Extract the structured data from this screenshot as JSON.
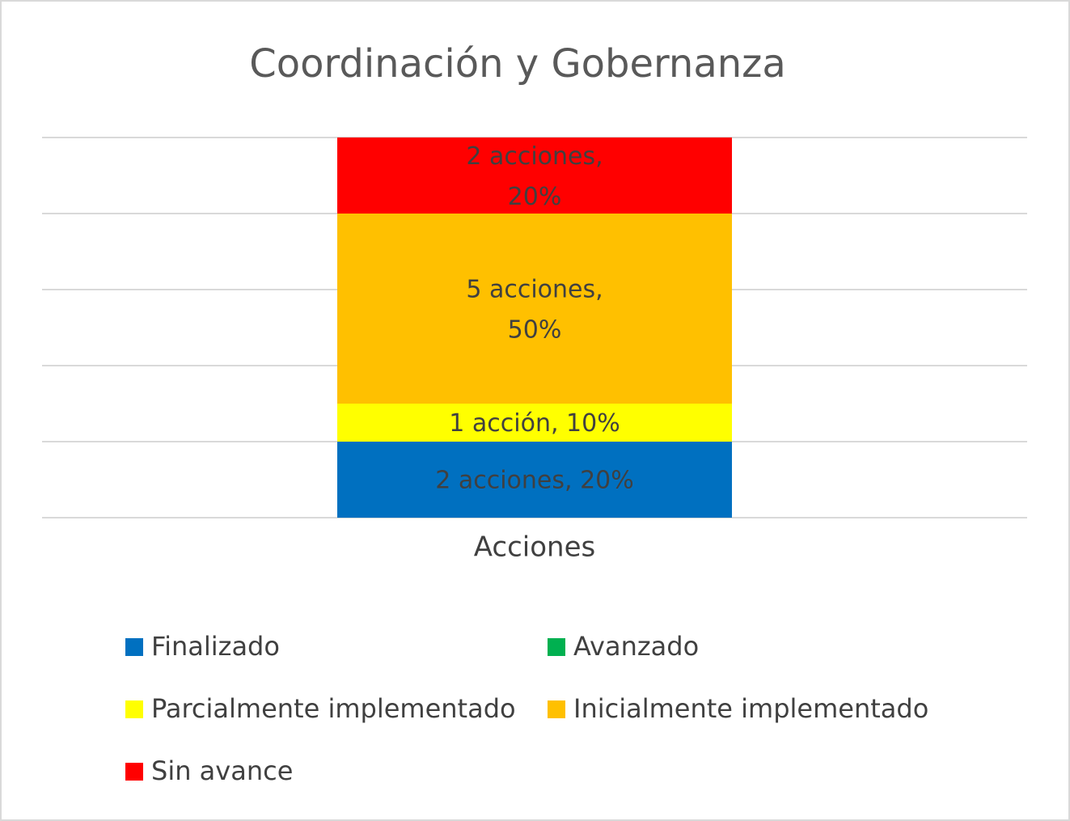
{
  "chart_data": {
    "type": "stacked_bar",
    "title": "Coordinación y Gobernanza",
    "categories": [
      "Acciones"
    ],
    "series": [
      {
        "name": "Finalizado",
        "color": "#0070c0",
        "values": [
          2
        ],
        "value_labels": [
          "2 acciones, 20%"
        ]
      },
      {
        "name": "Avanzado",
        "color": "#00b050",
        "values": [
          0
        ]
      },
      {
        "name": "Parcialmente implementado",
        "color": "#ffff00",
        "values": [
          1
        ],
        "value_labels": [
          "1 acción, 10%"
        ]
      },
      {
        "name": "Inicialmente implementado",
        "color": "#ffc000",
        "values": [
          5
        ],
        "value_labels": [
          "5 acciones, 50%"
        ]
      },
      {
        "name": "Sin avance",
        "color": "#ff0000",
        "values": [
          2
        ],
        "value_labels": [
          "2 acciones, 20%"
        ]
      }
    ],
    "ylim": [
      0,
      10
    ],
    "yticks": [
      0,
      2,
      4,
      6,
      8,
      10
    ],
    "grid": true,
    "ytick_labels": false,
    "legend": "bottom"
  }
}
